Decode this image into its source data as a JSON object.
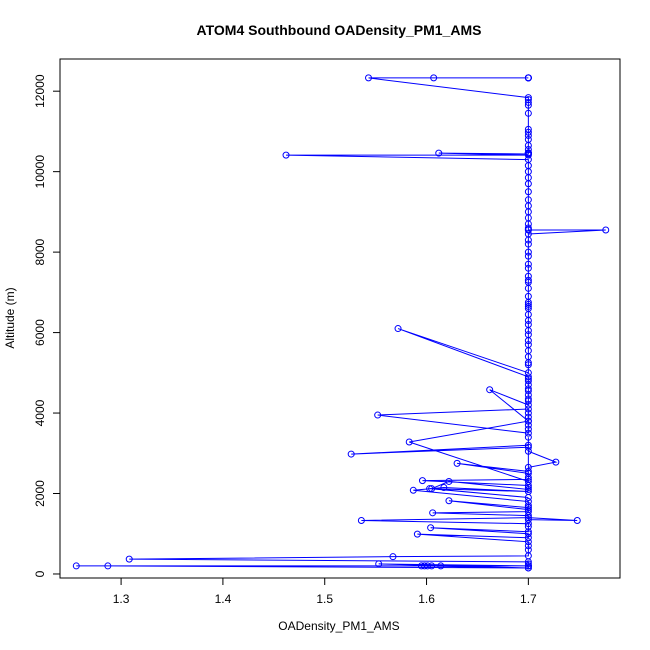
{
  "chart_data": {
    "type": "scatter",
    "title": "ATOM4 Southbound OADensity_PM1_AMS",
    "xlabel": "OADensity_PM1_AMS",
    "ylabel": "Altitude (m)",
    "xlim": [
      1.24,
      1.79
    ],
    "ylim": [
      -100,
      12800
    ],
    "xticks": [
      1.3,
      1.4,
      1.5,
      1.6,
      1.7
    ],
    "xtick_labels": [
      "1.3",
      "1.4",
      "1.5",
      "1.6",
      "1.7"
    ],
    "yticks": [
      0,
      2000,
      4000,
      6000,
      8000,
      10000,
      12000
    ],
    "ytick_labels": [
      "0",
      "2000",
      "4000",
      "6000",
      "8000",
      "10000",
      "12000"
    ],
    "grid": false,
    "legend": "none",
    "series": [
      {
        "color": "#0000ff",
        "style": "points-and-lines",
        "x": [
          1.7,
          1.7,
          1.7,
          1.607,
          1.7,
          1.543,
          1.7,
          1.7,
          1.7,
          1.7,
          1.7,
          1.7,
          1.7,
          1.7,
          1.7,
          1.7,
          1.7,
          1.7,
          1.7,
          1.7,
          1.7,
          1.7,
          1.7,
          1.612,
          1.7,
          1.462,
          1.7,
          1.7,
          1.7,
          1.7,
          1.7,
          1.7,
          1.7,
          1.7,
          1.7,
          1.7,
          1.7,
          1.7,
          1.7,
          1.7,
          1.776,
          1.7,
          1.7,
          1.7,
          1.7,
          1.7,
          1.7,
          1.7,
          1.7,
          1.7,
          1.7,
          1.7,
          1.7,
          1.7,
          1.7,
          1.7,
          1.7,
          1.7,
          1.7,
          1.7,
          1.7,
          1.7,
          1.7,
          1.7,
          1.7,
          1.7,
          1.7,
          1.7,
          1.7,
          1.572,
          1.7,
          1.7,
          1.7,
          1.7,
          1.7,
          1.7,
          1.7,
          1.7,
          1.7,
          1.7,
          1.662,
          1.7,
          1.7,
          1.7,
          1.7,
          1.552,
          1.7,
          1.7,
          1.7,
          1.7,
          1.583,
          1.7,
          1.7,
          1.7,
          1.526,
          1.7,
          1.7,
          1.727,
          1.7,
          1.7,
          1.63,
          1.7,
          1.7,
          1.7,
          1.596,
          1.7,
          1.7,
          1.7,
          1.622,
          1.605,
          1.7,
          1.603,
          1.7,
          1.617,
          1.587,
          1.7,
          1.7,
          1.7,
          1.622,
          1.7,
          1.7,
          1.606,
          1.7,
          1.7,
          1.748,
          1.7,
          1.536,
          1.7,
          1.7,
          1.7,
          1.604,
          1.7,
          1.7,
          1.591,
          1.7,
          1.7,
          1.7,
          1.7,
          1.567,
          1.308,
          1.7,
          1.7,
          1.7,
          1.553,
          1.7,
          1.595,
          1.598,
          1.601,
          1.605,
          1.7,
          1.614,
          1.7,
          1.7,
          1.287,
          1.256,
          1.7
        ],
        "y": [
          12330,
          12330,
          12330,
          12330,
          12330,
          12330,
          11840,
          11790,
          11720,
          11650,
          11450,
          11050,
          10980,
          10900,
          10800,
          10650,
          10550,
          10470,
          10460,
          10460,
          10450,
          10450,
          10440,
          10460,
          10410,
          10410,
          10300,
          10150,
          10000,
          9850,
          9700,
          9500,
          9300,
          9150,
          9000,
          8850,
          8700,
          8600,
          8560,
          8550,
          8550,
          8450,
          8300,
          8200,
          8000,
          7900,
          7700,
          7600,
          7400,
          7300,
          7250,
          7100,
          6900,
          6750,
          6700,
          6650,
          6600,
          6450,
          6300,
          6200,
          6050,
          5950,
          5800,
          5700,
          5550,
          5400,
          5250,
          5200,
          5000,
          6100,
          4900,
          4850,
          4800,
          4700,
          4600,
          4550,
          4450,
          4350,
          4300,
          4200,
          4580,
          3800,
          3700,
          3600,
          3500,
          3950,
          4100,
          4000,
          3900,
          3800,
          3280,
          2300,
          3400,
          3200,
          2980,
          3150,
          3050,
          2780,
          2650,
          2550,
          2750,
          2500,
          2400,
          2350,
          2320,
          2200,
          2150,
          2100,
          2300,
          2120,
          1900,
          2120,
          2050,
          2150,
          2080,
          1800,
          1700,
          1650,
          1820,
          1600,
          1550,
          1520,
          1450,
          1350,
          1330,
          1400,
          1330,
          1250,
          1180,
          1050,
          1150,
          1000,
          900,
          990,
          800,
          700,
          600,
          450,
          430,
          370,
          300,
          250,
          200,
          250,
          150,
          200,
          200,
          200,
          200,
          200,
          200,
          200,
          150,
          200,
          200,
          200
        ]
      }
    ]
  }
}
